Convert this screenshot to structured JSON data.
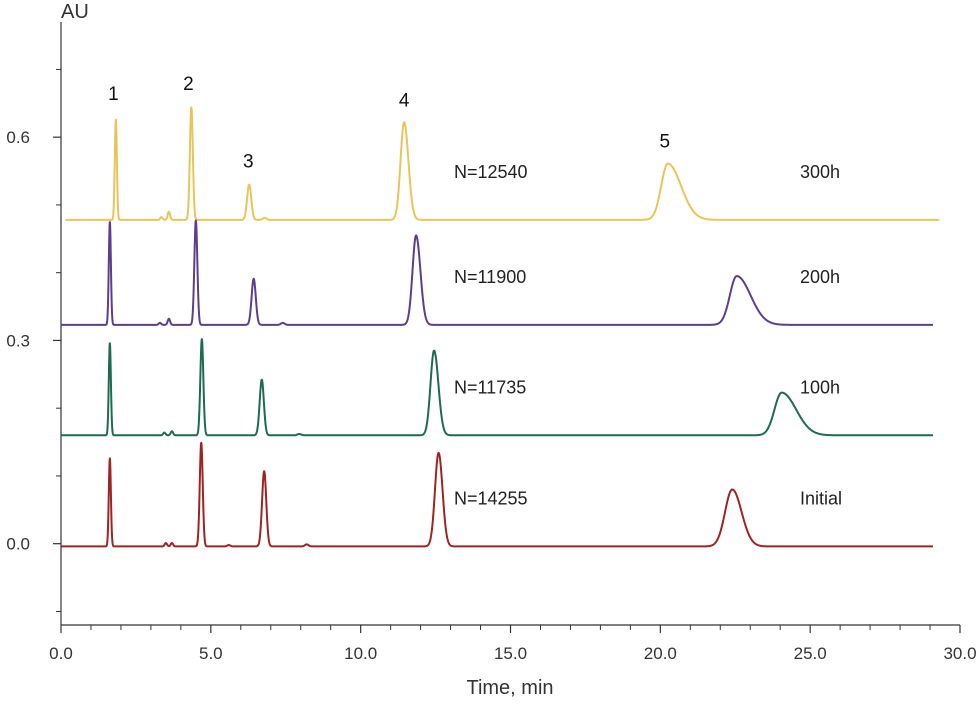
{
  "chart_data": {
    "type": "line",
    "title": "",
    "xlabel": "Time, min",
    "ylabel": "AU",
    "xlim": [
      0,
      30
    ],
    "ylim": [
      -0.12,
      0.77
    ],
    "x_ticks": [
      "0.0",
      "5.0",
      "10.0",
      "15.0",
      "20.0",
      "25.0",
      "30.0"
    ],
    "x_tick_values": [
      0,
      5,
      10,
      15,
      20,
      25,
      30
    ],
    "y_ticks": [
      "0.0",
      "0.3",
      "0.6"
    ],
    "y_tick_values": [
      0.0,
      0.3,
      0.6
    ],
    "peak_labels": [
      "1",
      "2",
      "3",
      "4",
      "5"
    ],
    "peak_label_positions": [
      {
        "x": 1.75,
        "y": 0.655
      },
      {
        "x": 4.25,
        "y": 0.67
      },
      {
        "x": 6.25,
        "y": 0.555
      },
      {
        "x": 11.45,
        "y": 0.645
      },
      {
        "x": 20.15,
        "y": 0.585
      }
    ],
    "series": [
      {
        "name": "300h",
        "plate_count": "N=12540",
        "color": "#E8C55A",
        "baseline": 0.478,
        "x_range": [
          0.15,
          29.3
        ],
        "peaks": [
          {
            "x": 1.83,
            "height": 0.148,
            "width": 0.035,
            "tail": 1.0
          },
          {
            "x": 3.6,
            "height": 0.012,
            "width": 0.04,
            "tail": 1.0
          },
          {
            "x": 3.35,
            "height": 0.004,
            "width": 0.04,
            "tail": 1.0
          },
          {
            "x": 4.35,
            "height": 0.166,
            "width": 0.05,
            "tail": 1.0
          },
          {
            "x": 6.28,
            "height": 0.052,
            "width": 0.07,
            "tail": 1.0
          },
          {
            "x": 6.8,
            "height": 0.003,
            "width": 0.06,
            "tail": 1.0
          },
          {
            "x": 11.45,
            "height": 0.144,
            "width": 0.12,
            "tail": 1.2
          },
          {
            "x": 20.25,
            "height": 0.083,
            "width": 0.22,
            "tail": 2.0
          }
        ]
      },
      {
        "name": "200h",
        "plate_count": "N=11900",
        "color": "#5B3F8C",
        "baseline": 0.323,
        "x_range": [
          0.0,
          29.1
        ],
        "peaks": [
          {
            "x": 1.63,
            "height": 0.152,
            "width": 0.035,
            "tail": 1.0
          },
          {
            "x": 3.6,
            "height": 0.009,
            "width": 0.04,
            "tail": 1.0
          },
          {
            "x": 3.3,
            "height": 0.003,
            "width": 0.04,
            "tail": 1.0
          },
          {
            "x": 4.5,
            "height": 0.154,
            "width": 0.05,
            "tail": 1.0
          },
          {
            "x": 6.43,
            "height": 0.068,
            "width": 0.07,
            "tail": 1.0
          },
          {
            "x": 7.4,
            "height": 0.003,
            "width": 0.06,
            "tail": 1.0
          },
          {
            "x": 11.85,
            "height": 0.132,
            "width": 0.12,
            "tail": 1.2
          },
          {
            "x": 22.55,
            "height": 0.072,
            "width": 0.23,
            "tail": 2.0
          }
        ]
      },
      {
        "name": "100h",
        "plate_count": "N=11735",
        "color": "#1D6B50",
        "baseline": 0.16,
        "x_range": [
          0.0,
          29.1
        ],
        "peaks": [
          {
            "x": 1.63,
            "height": 0.136,
            "width": 0.035,
            "tail": 1.0
          },
          {
            "x": 3.45,
            "height": 0.004,
            "width": 0.04,
            "tail": 1.0
          },
          {
            "x": 3.7,
            "height": 0.006,
            "width": 0.04,
            "tail": 1.0
          },
          {
            "x": 4.7,
            "height": 0.142,
            "width": 0.05,
            "tail": 1.0
          },
          {
            "x": 6.7,
            "height": 0.082,
            "width": 0.07,
            "tail": 1.0
          },
          {
            "x": 7.95,
            "height": 0.002,
            "width": 0.06,
            "tail": 1.0
          },
          {
            "x": 12.45,
            "height": 0.125,
            "width": 0.12,
            "tail": 1.2
          },
          {
            "x": 24.05,
            "height": 0.063,
            "width": 0.24,
            "tail": 2.0
          }
        ]
      },
      {
        "name": "Initial",
        "plate_count": "N=14255",
        "color": "#9E2424",
        "baseline": -0.004,
        "x_range": [
          0.0,
          29.1
        ],
        "peaks": [
          {
            "x": 1.63,
            "height": 0.13,
            "width": 0.035,
            "tail": 1.0
          },
          {
            "x": 3.5,
            "height": 0.005,
            "width": 0.04,
            "tail": 1.0
          },
          {
            "x": 3.7,
            "height": 0.005,
            "width": 0.04,
            "tail": 1.0
          },
          {
            "x": 4.68,
            "height": 0.153,
            "width": 0.05,
            "tail": 1.0
          },
          {
            "x": 5.6,
            "height": 0.002,
            "width": 0.05,
            "tail": 1.0
          },
          {
            "x": 6.78,
            "height": 0.111,
            "width": 0.07,
            "tail": 1.0
          },
          {
            "x": 8.2,
            "height": 0.003,
            "width": 0.06,
            "tail": 1.0
          },
          {
            "x": 12.6,
            "height": 0.138,
            "width": 0.12,
            "tail": 1.1
          },
          {
            "x": 22.4,
            "height": 0.084,
            "width": 0.24,
            "tail": 1.3
          }
        ]
      }
    ]
  }
}
